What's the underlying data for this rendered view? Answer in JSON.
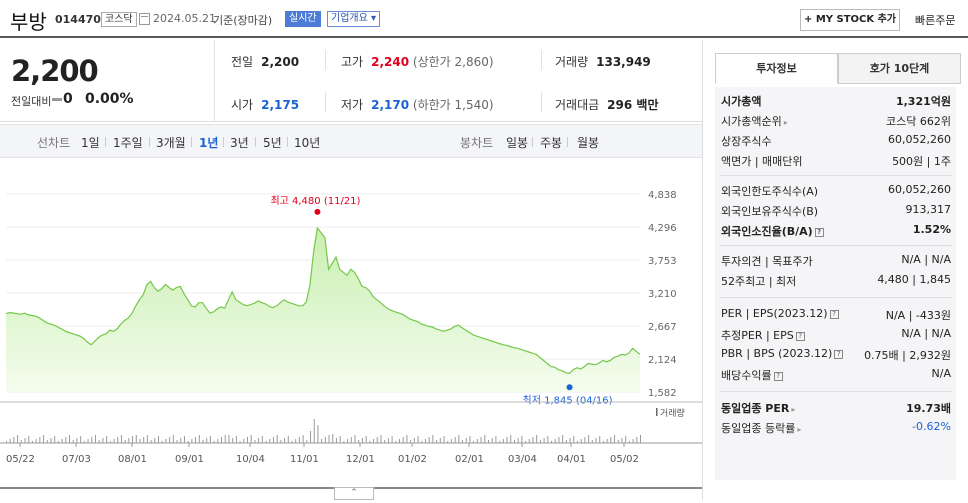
{
  "header": {
    "name": "부방",
    "code": "014470",
    "market": "코스닥",
    "date": "2024.05.21",
    "basis": "기준(장마감)",
    "realtime": "실시간",
    "overview": "기업개요 ▾",
    "mystock": "+ MY STOCK 추가",
    "quick_order": "빠른주문"
  },
  "price": {
    "current": "2,200",
    "change_label": "전일대비",
    "change": "0",
    "change_pct": "0.00%",
    "prev_close_label": "전일",
    "prev_close": "2,200",
    "high_label": "고가",
    "high": "2,240",
    "upper_limit": "(상한가 2,860)",
    "volume_label": "거래량",
    "volume": "133,949",
    "open_label": "시가",
    "open": "2,175",
    "low_label": "저가",
    "low": "2,170",
    "lower_limit": "(하한가 1,540)",
    "trade_value_label": "거래대금",
    "trade_value": "296 백만"
  },
  "periods": {
    "line_label": "선차트",
    "line": [
      "1일",
      "1주일",
      "3개월",
      "1년",
      "3년",
      "5년",
      "10년"
    ],
    "selected": "1년",
    "candle_label": "봉차트",
    "candle": [
      "일봉",
      "주봉",
      "월봉"
    ]
  },
  "chart_data": {
    "type": "area",
    "yticks": [
      "4,838",
      "4,296",
      "3,753",
      "3,210",
      "2,667",
      "2,124",
      "1,582"
    ],
    "ylim": [
      1582,
      4838
    ],
    "xticks": [
      "05/22",
      "07/03",
      "08/01",
      "09/01",
      "10/04",
      "11/01",
      "12/01",
      "01/02",
      "02/01",
      "03/04",
      "04/01",
      "05/02"
    ],
    "high_label": "최고 4,480 (11/21)",
    "low_label": "최저 1,845 (04/16)",
    "volume_legend": "거래량",
    "series": [
      {
        "values": [
          2870,
          2890,
          2880,
          2870,
          2860,
          2880,
          2850,
          2840,
          2830,
          2800,
          2760,
          2720,
          2700,
          2680,
          2650,
          2620,
          2580,
          2560,
          2540,
          2520,
          2500,
          2460,
          2400,
          2360,
          2420,
          2480,
          2520,
          2540,
          2600,
          2580,
          2620,
          2700,
          2760,
          2800,
          2880,
          3000,
          3100,
          3180,
          3350,
          3400,
          3300,
          3240,
          3280,
          3350,
          3300,
          3260,
          3300,
          3320,
          3200,
          3100,
          3000,
          2980,
          3050,
          3050,
          2960,
          2880,
          2900,
          2950,
          2980,
          2960,
          3100,
          3230,
          3100,
          3060,
          3020,
          3000,
          3020,
          3040,
          3080,
          3050,
          3030,
          2990,
          2970,
          3000,
          3050,
          3100,
          3060,
          3040,
          3020,
          3000,
          3000,
          3060,
          3350,
          3900,
          4280,
          4200,
          4120,
          3600,
          3700,
          3800,
          3600,
          3550,
          3500,
          3600,
          3550,
          3450,
          3320,
          3300,
          3250,
          3150,
          3100,
          3050,
          3000,
          2950,
          2920,
          2900,
          2880,
          2860,
          2820,
          2780,
          2760,
          2740,
          2700,
          2680,
          2660,
          2650,
          2620,
          2600,
          2580,
          2600,
          2620,
          2660,
          2680,
          2640,
          2600,
          2560,
          2520,
          2500,
          2480,
          2460,
          2440,
          2420,
          2400,
          2380,
          2360,
          2350,
          2330,
          2310,
          2300,
          2280,
          2260,
          2240,
          2220,
          2200,
          2150,
          2100,
          2050,
          2000,
          1990,
          1950,
          1930,
          1900,
          1890,
          1950,
          1980,
          1960,
          2000,
          2050,
          2040,
          2030,
          2060,
          2100,
          2080,
          2100,
          2150,
          2170,
          2200,
          2190,
          2220,
          2300,
          2250,
          2200
        ]
      }
    ]
  },
  "side": {
    "tab_invest": "투자정보",
    "tab_orderbook": "호가 10단계",
    "rows_g1": [
      {
        "k": "시가총액",
        "v": "1,321억원",
        "bold": true
      },
      {
        "k": "시가총액순위",
        "v": "코스닥 662위",
        "arrow": true
      },
      {
        "k": "상장주식수",
        "v": "60,052,260"
      },
      {
        "k": "액면가 | 매매단위",
        "v": "500원 | 1주"
      }
    ],
    "rows_g2": [
      {
        "k": "외국인한도주식수(A)",
        "v": "60,052,260"
      },
      {
        "k": "외국인보유주식수(B)",
        "v": "913,317"
      },
      {
        "k": "외국인소진율(B/A)",
        "v": "1.52%",
        "bold": true,
        "mini": true
      }
    ],
    "rows_g3": [
      {
        "k": "투자의견 | 목표주가",
        "v": "N/A | N/A"
      },
      {
        "k": "52주최고 | 최저",
        "v": "4,480 | 1,845"
      }
    ],
    "rows_g4": [
      {
        "k": "PER | EPS(2023.12)",
        "v": "N/A | -433원",
        "mini": true
      },
      {
        "k": "추정PER | EPS",
        "v": "N/A | N/A",
        "mini": true
      },
      {
        "k": "PBR | BPS (2023.12)",
        "v": "0.75배 | 2,932원",
        "mini": true
      },
      {
        "k": "배당수익률",
        "v": "N/A",
        "mini": true
      }
    ],
    "rows_g5": [
      {
        "k": "동일업종 PER",
        "v": "19.73배",
        "bold": true,
        "arrow": true
      },
      {
        "k": "동일업종 등락률",
        "v": "-0.62%",
        "arrow": true,
        "blue": true
      }
    ]
  },
  "toggle": "⌃"
}
